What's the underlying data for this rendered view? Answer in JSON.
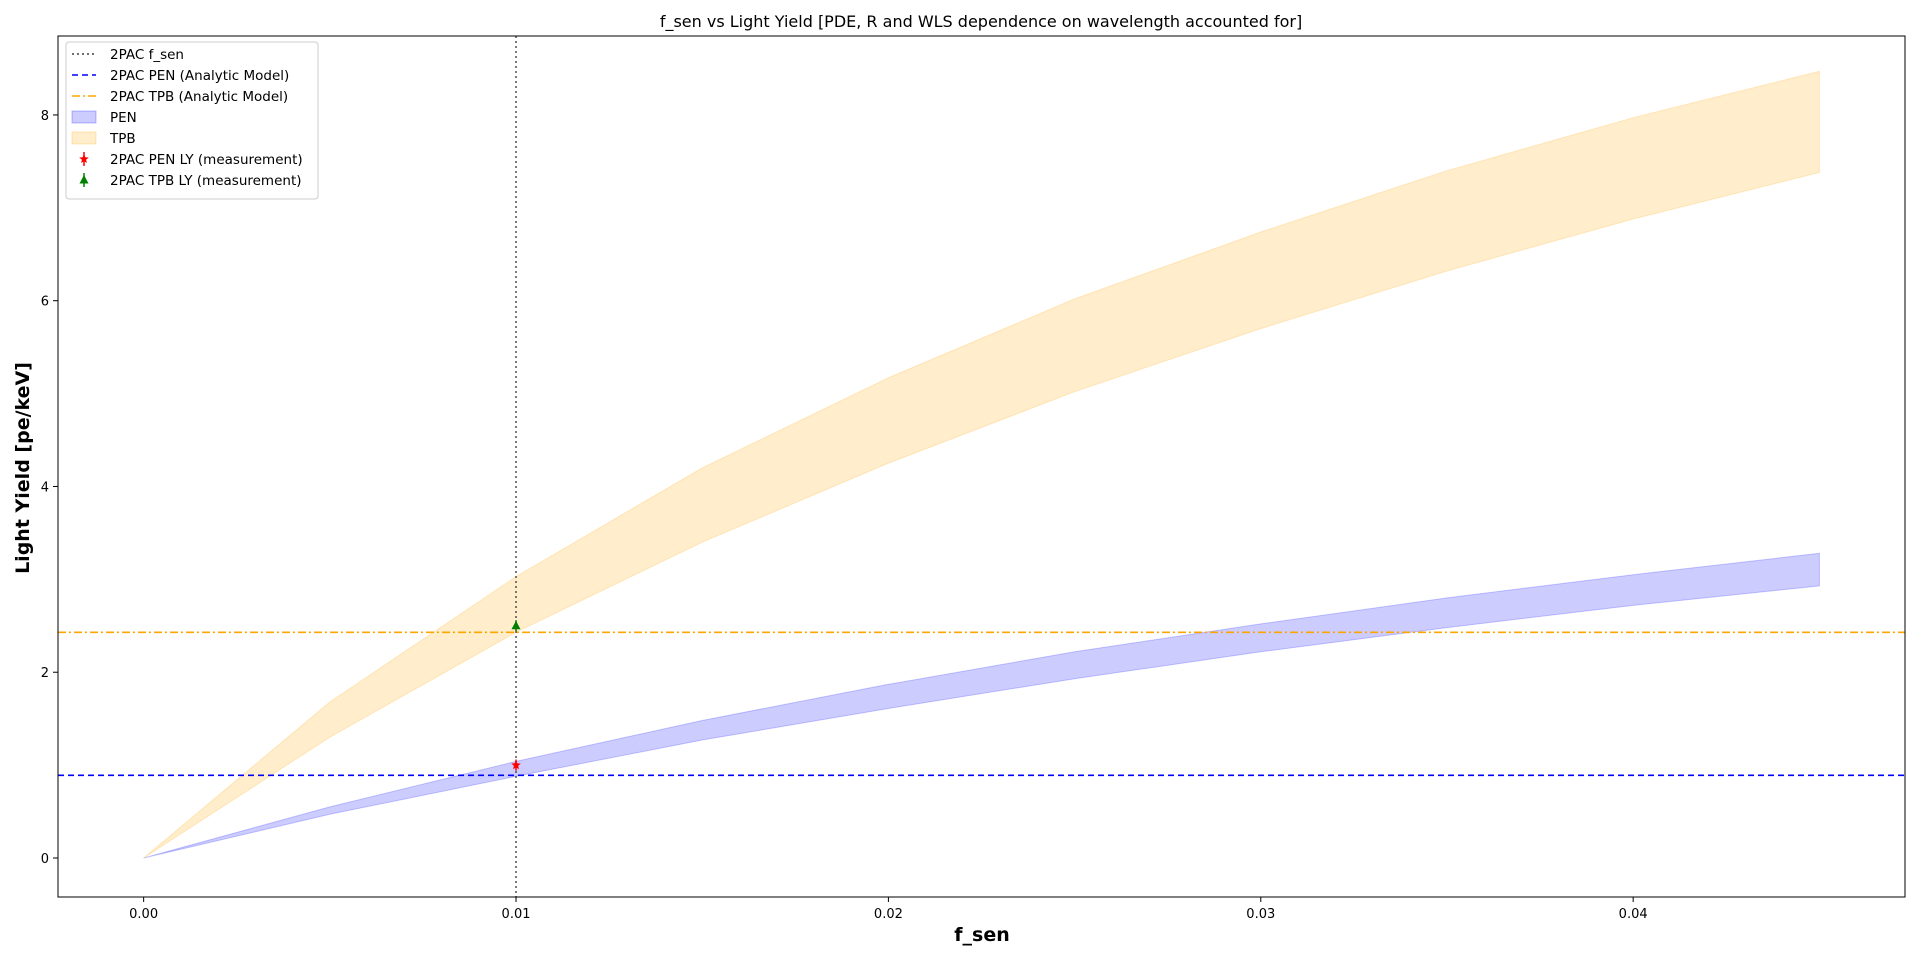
{
  "chart_data": {
    "type": "area",
    "title": "f_sen vs Light Yield [PDE, R and WLS dependence on wavelength accounted for]",
    "xlabel": "f_sen",
    "ylabel": "Light Yield [pe/keV]",
    "xlim": [
      -0.0023,
      0.0473
    ],
    "ylim": [
      -0.42,
      8.85
    ],
    "xticks": [
      0.0,
      0.01,
      0.02,
      0.03,
      0.04
    ],
    "xtick_labels": [
      "0.00",
      "0.01",
      "0.02",
      "0.03",
      "0.04"
    ],
    "yticks": [
      0,
      2,
      4,
      6,
      8
    ],
    "ytick_labels": [
      "0",
      "2",
      "4",
      "6",
      "8"
    ],
    "grid": false,
    "legend_position": "top-left",
    "bands": [
      {
        "name": "PEN",
        "color": "#0000ff",
        "x": [
          0.0,
          0.005,
          0.01,
          0.015,
          0.02,
          0.025,
          0.03,
          0.035,
          0.04,
          0.045
        ],
        "lower": [
          0.0,
          0.47,
          0.88,
          1.27,
          1.61,
          1.93,
          2.22,
          2.48,
          2.72,
          2.93
        ],
        "upper": [
          0.0,
          0.55,
          1.04,
          1.48,
          1.87,
          2.22,
          2.52,
          2.8,
          3.05,
          3.28
        ]
      },
      {
        "name": "TPB",
        "color": "#ffa500",
        "x": [
          0.0,
          0.005,
          0.01,
          0.015,
          0.02,
          0.025,
          0.03,
          0.035,
          0.04,
          0.045
        ],
        "lower": [
          0.0,
          1.3,
          2.43,
          3.4,
          4.25,
          5.02,
          5.7,
          6.32,
          6.88,
          7.38
        ],
        "upper": [
          0.0,
          1.68,
          3.03,
          4.2,
          5.17,
          6.02,
          6.74,
          7.4,
          7.97,
          8.47
        ]
      }
    ],
    "hlines": [
      {
        "name": "2PAC PEN (Analytic Model)",
        "y": 0.89,
        "color": "#0000ff",
        "style": "dashed"
      },
      {
        "name": "2PAC TPB (Analytic Model)",
        "y": 2.43,
        "color": "#ffa500",
        "style": "dashdot"
      }
    ],
    "vlines": [
      {
        "name": "2PAC f_sen",
        "x": 0.01,
        "color": "#444444",
        "style": "dotted"
      }
    ],
    "points": [
      {
        "name": "2PAC PEN LY (measurement)",
        "x": 0.01,
        "y": 1.0,
        "yerr": 0.06,
        "color": "#ff0000",
        "marker": "star"
      },
      {
        "name": "2PAC TPB LY (measurement)",
        "x": 0.01,
        "y": 2.5,
        "yerr": 0.06,
        "color": "#008000",
        "marker": "triangle"
      }
    ],
    "legend": [
      {
        "label": "2PAC f_sen",
        "kind": "line",
        "color": "#444444",
        "style": "dotted"
      },
      {
        "label": "2PAC PEN (Analytic Model)",
        "kind": "line",
        "color": "#0000ff",
        "style": "dashed"
      },
      {
        "label": "2PAC TPB (Analytic Model)",
        "kind": "line",
        "color": "#ffa500",
        "style": "dashdot"
      },
      {
        "label": "PEN",
        "kind": "patch",
        "color": "#0000ff"
      },
      {
        "label": "TPB",
        "kind": "patch",
        "color": "#ffa500"
      },
      {
        "label": "2PAC PEN LY (measurement)",
        "kind": "star",
        "color": "#ff0000"
      },
      {
        "label": "2PAC TPB LY (measurement)",
        "kind": "triangle",
        "color": "#008000"
      }
    ]
  }
}
